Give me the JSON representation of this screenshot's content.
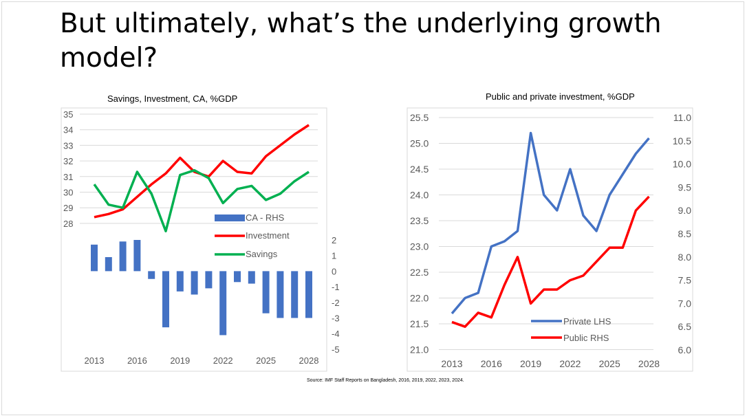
{
  "slide": {
    "title_line1": "But ultimately, what’s the underlying growth",
    "title_line2": "model?",
    "source": "Source: IMF Staff Reports on Bangladesh, 2016, 2019, 2022, 2023, 2024."
  },
  "chart_data": [
    {
      "type": "bar+line",
      "title": "Savings, Investment, CA, %GDP",
      "x_tick_labels": [
        "2013",
        "2016",
        "2019",
        "2022",
        "2025",
        "2028"
      ],
      "years": [
        2013,
        2014,
        2015,
        2016,
        2017,
        2018,
        2019,
        2020,
        2021,
        2022,
        2023,
        2024,
        2025,
        2026,
        2027,
        2028
      ],
      "left_axis": {
        "ticks": [
          35,
          34,
          33,
          32,
          31,
          30,
          29,
          28
        ],
        "range": [
          28,
          35
        ]
      },
      "right_axis": {
        "ticks": [
          2,
          1,
          0,
          -1,
          -2,
          -3,
          -4,
          -5
        ],
        "range": [
          -5,
          2
        ]
      },
      "series": [
        {
          "name": "CA - RHS",
          "kind": "bar",
          "axis": "right",
          "color": "#4472c4",
          "values": [
            1.7,
            0.9,
            1.9,
            2.0,
            -0.5,
            -3.6,
            -1.3,
            -1.5,
            -1.1,
            -4.1,
            -0.7,
            -0.8,
            -2.7,
            -3.0,
            -3.0,
            -3.0
          ]
        },
        {
          "name": "Investment",
          "kind": "line",
          "axis": "left",
          "color": "#ff0000",
          "values": [
            28.4,
            28.6,
            28.9,
            29.7,
            30.5,
            31.2,
            32.2,
            31.3,
            31.0,
            32.0,
            31.3,
            31.2,
            32.3,
            33.0,
            33.7,
            34.3
          ]
        },
        {
          "name": "Savings",
          "kind": "line",
          "axis": "left",
          "color": "#00b050",
          "values": [
            30.5,
            29.2,
            29.0,
            31.3,
            29.9,
            27.5,
            31.1,
            31.4,
            30.9,
            29.3,
            30.2,
            30.4,
            29.5,
            29.9,
            30.7,
            31.3
          ]
        }
      ],
      "legend": [
        "CA - RHS",
        "Investment",
        "Savings"
      ]
    },
    {
      "type": "line",
      "title": "Public and private investment, %GDP",
      "x_tick_labels": [
        "2013",
        "2016",
        "2019",
        "2022",
        "2025",
        "2028"
      ],
      "years": [
        2013,
        2014,
        2015,
        2016,
        2017,
        2018,
        2019,
        2020,
        2021,
        2022,
        2023,
        2024,
        2025,
        2026,
        2027,
        2028
      ],
      "left_axis": {
        "ticks": [
          "25.5",
          "25.0",
          "24.5",
          "24.0",
          "23.5",
          "23.0",
          "22.5",
          "22.0",
          "21.5",
          "21.0"
        ],
        "range": [
          21.0,
          25.5
        ]
      },
      "right_axis": {
        "ticks": [
          "11.0",
          "10.5",
          "10.0",
          "9.5",
          "9.0",
          "8.5",
          "8.0",
          "7.5",
          "7.0",
          "6.5",
          "6.0"
        ],
        "range": [
          6.0,
          11.0
        ]
      },
      "grid": true,
      "series": [
        {
          "name": "Private LHS",
          "axis": "left",
          "color": "#4472c4",
          "values": [
            21.7,
            22.0,
            22.1,
            23.0,
            23.1,
            23.3,
            25.2,
            24.0,
            23.7,
            24.5,
            23.6,
            23.3,
            24.0,
            24.4,
            24.8,
            25.1
          ]
        },
        {
          "name": "Public RHS",
          "axis": "right",
          "color": "#ff0000",
          "values": [
            6.6,
            6.5,
            6.8,
            6.7,
            7.4,
            8.0,
            7.0,
            7.3,
            7.3,
            7.5,
            7.6,
            7.9,
            8.2,
            8.2,
            9.0,
            9.3
          ]
        }
      ],
      "legend": [
        "Private LHS",
        "Public RHS"
      ]
    }
  ]
}
